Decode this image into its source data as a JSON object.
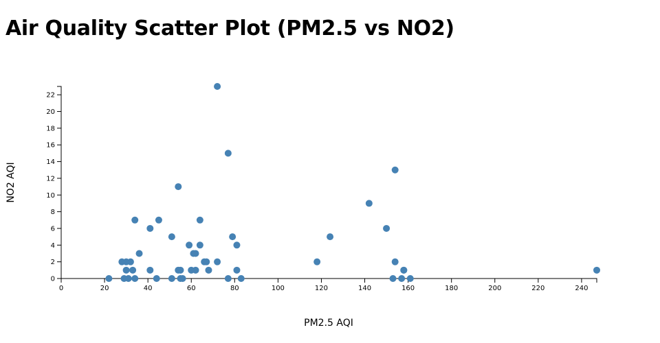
{
  "chart_data": {
    "type": "scatter",
    "title": "Air Quality Scatter Plot (PM2.5 vs NO2)",
    "xlabel": "PM2.5 AQI",
    "ylabel": "NO2 AQI",
    "xlim": [
      0,
      247
    ],
    "ylim": [
      0,
      23
    ],
    "x_ticks": [
      0,
      20,
      40,
      60,
      80,
      100,
      120,
      140,
      160,
      180,
      200,
      220,
      240
    ],
    "y_ticks": [
      0,
      2,
      4,
      6,
      8,
      10,
      12,
      14,
      16,
      18,
      20,
      22
    ],
    "grid": false,
    "color": "#4682b4",
    "points": [
      {
        "x": 22,
        "y": 0
      },
      {
        "x": 28,
        "y": 2
      },
      {
        "x": 29,
        "y": 0
      },
      {
        "x": 30,
        "y": 1
      },
      {
        "x": 30,
        "y": 2
      },
      {
        "x": 31,
        "y": 0
      },
      {
        "x": 32,
        "y": 2
      },
      {
        "x": 33,
        "y": 1
      },
      {
        "x": 34,
        "y": 0
      },
      {
        "x": 34,
        "y": 7
      },
      {
        "x": 36,
        "y": 3
      },
      {
        "x": 41,
        "y": 6
      },
      {
        "x": 41,
        "y": 1
      },
      {
        "x": 44,
        "y": 0
      },
      {
        "x": 45,
        "y": 7
      },
      {
        "x": 51,
        "y": 5
      },
      {
        "x": 51,
        "y": 0
      },
      {
        "x": 54,
        "y": 11
      },
      {
        "x": 54,
        "y": 1
      },
      {
        "x": 55,
        "y": 0
      },
      {
        "x": 55,
        "y": 1
      },
      {
        "x": 56,
        "y": 0
      },
      {
        "x": 59,
        "y": 4
      },
      {
        "x": 60,
        "y": 1
      },
      {
        "x": 61,
        "y": 3
      },
      {
        "x": 62,
        "y": 3
      },
      {
        "x": 62,
        "y": 1
      },
      {
        "x": 64,
        "y": 7
      },
      {
        "x": 64,
        "y": 4
      },
      {
        "x": 66,
        "y": 2
      },
      {
        "x": 67,
        "y": 2
      },
      {
        "x": 68,
        "y": 1
      },
      {
        "x": 72,
        "y": 23
      },
      {
        "x": 72,
        "y": 2
      },
      {
        "x": 77,
        "y": 15
      },
      {
        "x": 77,
        "y": 0
      },
      {
        "x": 79,
        "y": 5
      },
      {
        "x": 81,
        "y": 4
      },
      {
        "x": 81,
        "y": 1
      },
      {
        "x": 83,
        "y": 0
      },
      {
        "x": 118,
        "y": 2
      },
      {
        "x": 124,
        "y": 5
      },
      {
        "x": 142,
        "y": 9
      },
      {
        "x": 150,
        "y": 6
      },
      {
        "x": 153,
        "y": 0
      },
      {
        "x": 154,
        "y": 13
      },
      {
        "x": 154,
        "y": 2
      },
      {
        "x": 157,
        "y": 0
      },
      {
        "x": 158,
        "y": 1
      },
      {
        "x": 158,
        "y": 1
      },
      {
        "x": 161,
        "y": 0
      },
      {
        "x": 247,
        "y": 1
      }
    ]
  }
}
